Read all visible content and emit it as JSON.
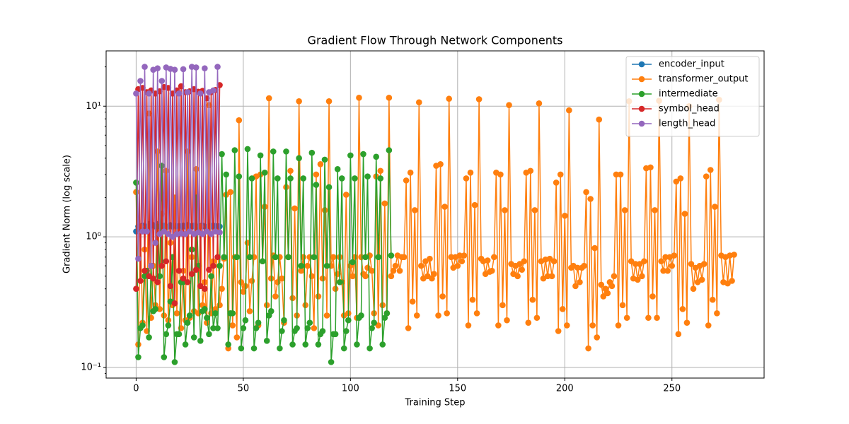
{
  "chart_data": {
    "type": "line",
    "title": "Gradient Flow Through Network Components",
    "x_label": "Training Step",
    "y_label": "Gradient Norm (log scale)",
    "xlim": [
      -14,
      293
    ],
    "xticks": [
      0,
      50,
      100,
      150,
      200,
      250
    ],
    "ylim": [
      0.083,
      26.5
    ],
    "log_scale": true,
    "grid": true,
    "legend": "upper right",
    "yticks": [
      {
        "value": 0.1,
        "label": "10⁻¹"
      },
      {
        "value": 1,
        "label": "10⁰"
      },
      {
        "value": 10,
        "label": "10¹"
      }
    ],
    "series": [
      {
        "name": "encoder_input",
        "color": "#1f77b4",
        "values": [
          1.1,
          1.2,
          1.15,
          1.22,
          1.18,
          1.2,
          1.25,
          1.22,
          1.23,
          1.2,
          1.25,
          1.2,
          1.2,
          1.22,
          1.18,
          1.2,
          1.23,
          1.2,
          1.22,
          1.2,
          1.21,
          1.19,
          1.22,
          1.2,
          1.23,
          1.21,
          1.2,
          1.22,
          1.19,
          1.2,
          1.21,
          1.22,
          1.2,
          1.19,
          1.21,
          1.2,
          1.22,
          1.2,
          1.21,
          1.2
        ]
      },
      {
        "name": "transformer_output",
        "color": "#ff7f0e",
        "values": [
          2.2,
          0.15,
          1.2,
          0.22,
          0.8,
          0.19,
          8.8,
          0.24,
          0.6,
          0.3,
          4.5,
          0.28,
          1.5,
          0.25,
          3.2,
          0.23,
          0.9,
          0.3,
          2.0,
          0.26,
          1.1,
          0.2,
          0.55,
          0.23,
          4.5,
          0.24,
          0.7,
          0.27,
          3.3,
          0.26,
          1.2,
          0.3,
          0.45,
          0.22,
          10.2,
          0.26,
          0.65,
          0.28,
          1.1,
          0.3,
          0.4,
          0.68,
          2.1,
          0.14,
          2.2,
          0.21,
          0.7,
          0.17,
          7.8,
          0.45,
          0.38,
          0.42,
          0.9,
          0.27,
          0.46,
          0.7,
          2.9,
          0.21,
          3.0,
          0.65,
          1.7,
          0.3,
          11.5,
          0.48,
          0.72,
          0.35,
          0.45,
          0.7,
          0.48,
          0.22,
          2.4,
          0.7,
          3.2,
          0.34,
          1.65,
          0.25,
          10.9,
          0.55,
          0.7,
          0.3,
          0.6,
          0.7,
          0.5,
          0.2,
          3.0,
          0.35,
          3.6,
          0.48,
          1.6,
          0.25,
          10.9,
          0.6,
          0.7,
          0.4,
          0.52,
          0.7,
          0.45,
          0.25,
          2.1,
          0.26,
          0.6,
          0.5,
          0.7,
          0.24,
          11.6,
          0.7,
          0.52,
          0.5,
          0.58,
          0.72,
          0.55,
          0.26,
          2.9,
          0.21,
          3.2,
          0.3,
          1.8,
          0.26,
          11.6,
          0.5,
          0.55,
          0.6,
          0.72,
          0.55,
          0.7,
          0.7,
          2.7,
          0.2,
          3.1,
          0.32,
          1.6,
          0.25,
          10.7,
          0.6,
          0.48,
          0.65,
          0.5,
          0.68,
          0.48,
          0.52,
          3.5,
          0.25,
          3.6,
          0.35,
          1.7,
          0.26,
          11.4,
          0.7,
          0.58,
          0.7,
          0.6,
          0.72,
          0.65,
          0.72,
          2.8,
          0.21,
          3.1,
          0.33,
          1.75,
          0.26,
          11.3,
          0.68,
          0.65,
          0.52,
          0.66,
          0.54,
          0.55,
          0.7,
          3.1,
          0.21,
          3.0,
          0.3,
          1.6,
          0.23,
          10.2,
          0.62,
          0.52,
          0.6,
          0.5,
          0.62,
          0.56,
          0.65,
          3.1,
          0.22,
          3.2,
          0.33,
          1.6,
          0.24,
          10.5,
          0.65,
          0.48,
          0.67,
          0.5,
          0.68,
          0.5,
          0.65,
          2.6,
          0.19,
          3.0,
          0.28,
          1.45,
          0.21,
          9.3,
          0.58,
          0.6,
          0.42,
          0.58,
          0.45,
          0.58,
          0.6,
          2.2,
          0.14,
          1.95,
          0.21,
          0.82,
          0.17,
          7.9,
          0.43,
          0.35,
          0.4,
          0.37,
          0.45,
          0.42,
          0.5,
          3.0,
          0.21,
          3.0,
          0.3,
          1.6,
          0.24,
          10.9,
          0.65,
          0.48,
          0.62,
          0.47,
          0.62,
          0.5,
          0.65,
          3.35,
          0.24,
          3.4,
          0.35,
          1.6,
          0.24,
          11.0,
          0.65,
          0.55,
          0.7,
          0.55,
          0.7,
          0.6,
          0.72,
          2.65,
          0.18,
          2.8,
          0.28,
          1.5,
          0.22,
          10.0,
          0.62,
          0.4,
          0.58,
          0.45,
          0.6,
          0.47,
          0.62,
          2.9,
          0.21,
          3.25,
          0.33,
          1.7,
          0.26,
          11.2,
          0.72,
          0.45,
          0.7,
          0.44,
          0.72,
          0.46,
          0.73
        ]
      },
      {
        "name": "intermediate",
        "color": "#2ca02c",
        "values": [
          2.6,
          0.12,
          0.2,
          0.21,
          0.5,
          0.55,
          0.17,
          0.6,
          0.27,
          0.28,
          1.2,
          0.5,
          3.5,
          0.12,
          0.18,
          0.21,
          0.32,
          0.7,
          0.11,
          0.18,
          0.18,
          0.45,
          0.45,
          0.15,
          0.22,
          0.25,
          0.8,
          0.17,
          2.0,
          0.6,
          0.16,
          0.27,
          0.28,
          0.24,
          0.18,
          0.5,
          0.2,
          0.26,
          0.2,
          0.6,
          4.3,
          0.7,
          3.0,
          0.15,
          0.26,
          0.26,
          4.6,
          0.7,
          2.9,
          0.14,
          0.2,
          0.23,
          4.7,
          0.7,
          2.8,
          0.14,
          0.2,
          0.22,
          4.2,
          0.65,
          3.1,
          0.16,
          0.25,
          0.27,
          4.5,
          0.7,
          2.8,
          0.14,
          0.19,
          0.23,
          4.5,
          0.7,
          2.8,
          0.15,
          0.19,
          0.2,
          4.0,
          0.6,
          2.8,
          0.15,
          0.2,
          0.22,
          4.4,
          0.7,
          2.5,
          0.15,
          0.18,
          0.19,
          3.9,
          0.6,
          2.4,
          0.11,
          0.18,
          0.18,
          3.3,
          0.45,
          2.8,
          0.14,
          0.19,
          0.23,
          4.2,
          0.64,
          2.8,
          0.15,
          0.24,
          0.25,
          4.3,
          0.7,
          2.9,
          0.14,
          0.2,
          0.22,
          4.1,
          0.7,
          2.8,
          0.15,
          0.24,
          0.26,
          4.6,
          0.72
        ]
      },
      {
        "name": "symbol_head",
        "color": "#d62728",
        "values": [
          0.4,
          13.5,
          0.46,
          13.8,
          0.55,
          12.8,
          0.5,
          13.2,
          0.48,
          12.5,
          0.45,
          13.0,
          0.6,
          14.0,
          0.65,
          13.8,
          0.42,
          12.5,
          0.31,
          13.2,
          0.55,
          14.2,
          0.48,
          12.8,
          0.45,
          13.0,
          0.52,
          13.5,
          0.56,
          12.9,
          0.42,
          13.1,
          0.4,
          11.5,
          0.56,
          12.8,
          0.6,
          13.3,
          0.7,
          14.5
        ]
      },
      {
        "name": "length_head",
        "color": "#9467bd",
        "values": [
          12.5,
          0.68,
          15.6,
          1.1,
          20,
          1.1,
          12.5,
          0.6,
          19,
          0.9,
          19.5,
          1.05,
          15.6,
          1.1,
          19.8,
          1.05,
          19.3,
          1.0,
          19,
          1.05,
          12.5,
          1.06,
          19.2,
          1.05,
          12.8,
          1.1,
          20,
          1.05,
          19.8,
          1.08,
          12.5,
          1.05,
          19.5,
          1.1,
          12.8,
          1.05,
          13.2,
          1.1,
          20,
          1.08
        ]
      }
    ]
  }
}
